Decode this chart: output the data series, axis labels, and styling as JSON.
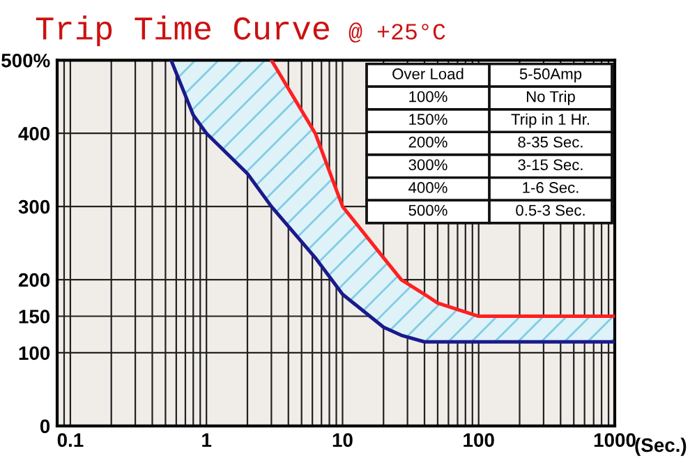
{
  "chart_data": {
    "type": "line",
    "title": "Trip Time Curve",
    "subtitle": "@ +25°C",
    "xlabel": "(Sec.)",
    "log": "x",
    "grid": true,
    "xlim": [
      0.08,
      1000
    ],
    "xticks": [
      0.1,
      1,
      10,
      100,
      1000
    ],
    "ylim": [
      0,
      500
    ],
    "yticks": [
      0,
      100,
      150,
      200,
      300,
      400,
      {
        "value": 500,
        "label": "500%"
      }
    ],
    "x": [
      0.55,
      0.8,
      1,
      2,
      3,
      6.3,
      10,
      20,
      27,
      40,
      50,
      100,
      1000
    ],
    "series": [
      {
        "color": "#1a1a8c",
        "values": [
          500,
          425,
          400,
          345,
          300,
          230,
          180,
          135,
          124,
          115,
          115,
          115,
          115
        ],
        "lower": [
          500,
          425,
          400,
          345,
          300,
          230,
          180,
          135,
          124,
          115,
          115,
          115,
          115
        ],
        "upper": [
          500,
          500,
          500,
          500,
          500,
          400,
          300,
          230,
          200,
          180,
          168,
          150,
          150
        ]
      },
      {
        "color": "#ff2020",
        "values": [
          null,
          null,
          null,
          null,
          500,
          400,
          300,
          230,
          200,
          180,
          168,
          150,
          150
        ]
      }
    ],
    "annotations": [
      "Over Load",
      "5-50Amp",
      "100%",
      "No Trip",
      "150%",
      "Trip in 1 Hr.",
      "200%",
      "8-35 Sec.",
      "300%",
      "3-15 Sec.",
      "400%",
      "1-6 Sec.",
      "500%",
      "0.5-3 Sec."
    ]
  }
}
